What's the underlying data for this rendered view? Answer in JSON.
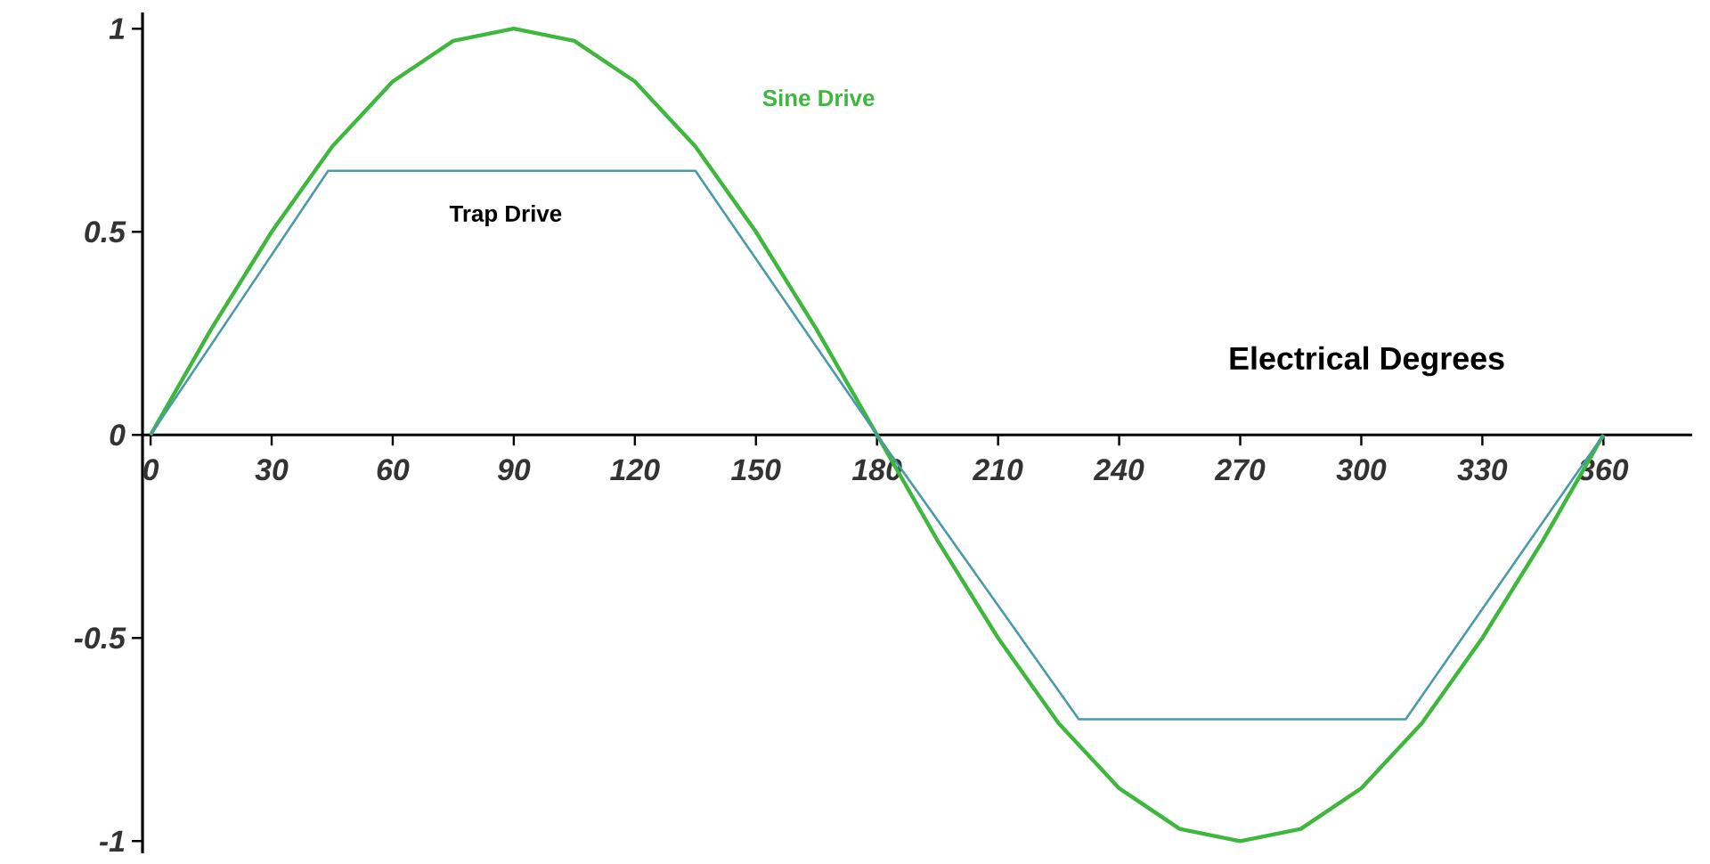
{
  "chart_data": {
    "type": "line",
    "xlabel": "Electrical Degrees",
    "xlim": [
      -2,
      382
    ],
    "ylim": [
      -1.03,
      1.04
    ],
    "xticks": [
      0,
      30,
      60,
      90,
      120,
      150,
      180,
      210,
      240,
      270,
      300,
      330,
      360
    ],
    "yticks": [
      1,
      0.5,
      0,
      -0.5,
      -1
    ],
    "grid": false,
    "legend": false,
    "marker": "none",
    "line_style": "solid",
    "series": [
      {
        "name": "Sine Drive",
        "color": "#3db83d",
        "x": [
          0,
          15,
          30,
          45,
          60,
          75,
          90,
          105,
          120,
          135,
          150,
          165,
          180,
          195,
          210,
          225,
          240,
          255,
          270,
          285,
          300,
          315,
          330,
          345,
          360
        ],
        "values": [
          0,
          0.26,
          0.5,
          0.71,
          0.87,
          0.97,
          1,
          0.97,
          0.87,
          0.71,
          0.5,
          0.26,
          0,
          -0.26,
          -0.5,
          -0.71,
          -0.87,
          -0.97,
          -1,
          -0.97,
          -0.87,
          -0.71,
          -0.5,
          -0.26,
          0
        ]
      },
      {
        "name": "Trap Drive",
        "color": "#4a9aa8",
        "x": [
          0,
          44,
          135,
          180,
          230,
          311,
          360
        ],
        "values": [
          0,
          0.65,
          0.65,
          0,
          -0.7,
          -0.7,
          0
        ]
      }
    ]
  }
}
